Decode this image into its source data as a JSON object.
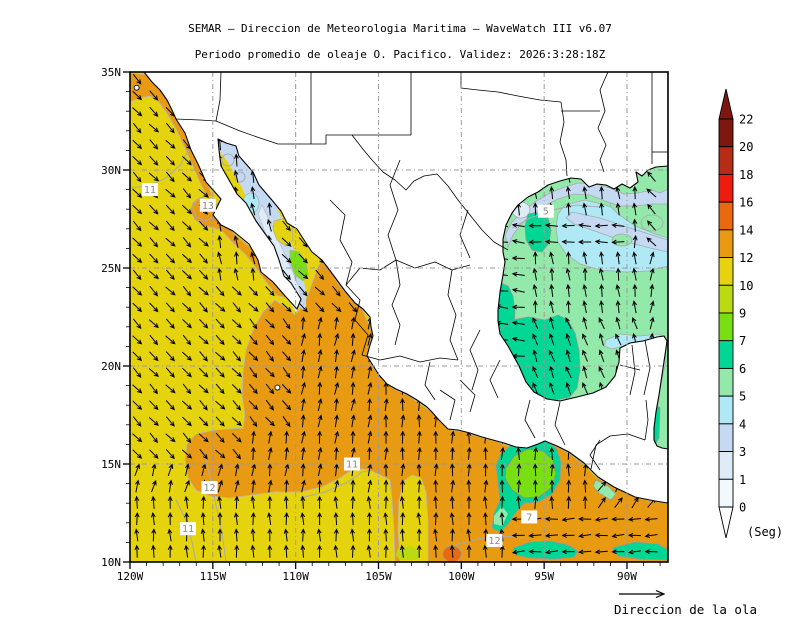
{
  "title": "SEMAR — Direccion de Meteorologia Maritima — WaveWatch III v6.07",
  "subtitle": "Periodo promedio de oleaje O. Pacifico. Validez: 2026:3:28:18Z",
  "legend": {
    "label": "Direccion de la ola"
  },
  "colorbar": {
    "unit": "(Seg)",
    "boundaries": [
      "22",
      "20",
      "18",
      "16",
      "14",
      "12",
      "10",
      "9",
      "7",
      "6",
      "5",
      "4",
      "3",
      "1",
      "0"
    ],
    "colors": [
      "#7C1810",
      "#B42D14",
      "#ED1C0F",
      "#E8690E",
      "#E89A12",
      "#E5D30D",
      "#BBDA10",
      "#7ADF12",
      "#00D795",
      "#92E9A9",
      "#AEE9F5",
      "#C5D9F3",
      "#DEECF8",
      "#F2F9FD"
    ]
  },
  "palette": {
    "c0_1": "#F2F9FD",
    "c1_3": "#DEECF8",
    "c3_4": "#C5D9F3",
    "c4_5": "#AEE9F5",
    "c5_6": "#92E9A9",
    "c6_7": "#00D795",
    "c7_9": "#7ADF12",
    "c9_10": "#BBDA10",
    "c10_12": "#E5D30D",
    "c12_14": "#E89A12",
    "c14_16": "#E8690E",
    "c16_18": "#ED1C0F",
    "c18_20": "#B42D14",
    "c20_22": "#7C1810",
    "grid": "#9B9B9B",
    "contour": "#ABABAB",
    "arrow": "#000000"
  },
  "axes": {
    "lat": [
      {
        "deg": 35,
        "label": "35N"
      },
      {
        "deg": 30,
        "label": "30N"
      },
      {
        "deg": 25,
        "label": "25N"
      },
      {
        "deg": 20,
        "label": "20N"
      },
      {
        "deg": 15,
        "label": "15N"
      },
      {
        "deg": 10,
        "label": "10N"
      }
    ],
    "lon": [
      {
        "deg": -120,
        "label": "120W"
      },
      {
        "deg": -115,
        "label": "115W"
      },
      {
        "deg": -110,
        "label": "110W"
      },
      {
        "deg": -105,
        "label": "105W"
      },
      {
        "deg": -100,
        "label": "100W"
      },
      {
        "deg": -95,
        "label": "95W"
      },
      {
        "deg": -90,
        "label": "90W"
      }
    ]
  },
  "contour_labels": [
    {
      "text": "11",
      "lon": -118.8,
      "lat": 29.0
    },
    {
      "text": "13",
      "lon": -115.3,
      "lat": 28.2
    },
    {
      "text": "11",
      "lon": -116.5,
      "lat": 11.7
    },
    {
      "text": "12",
      "lon": -115.2,
      "lat": 13.8
    },
    {
      "text": "11",
      "lon": -106.6,
      "lat": 15.0
    },
    {
      "text": "12",
      "lon": -98.0,
      "lat": 11.1
    },
    {
      "text": "7",
      "lon": -95.9,
      "lat": 12.3
    },
    {
      "text": "5",
      "lon": -94.9,
      "lat": 27.9
    }
  ],
  "islands": [
    {
      "name": "santa-cruz-islet",
      "lon": -119.6,
      "lat": 34.2
    },
    {
      "name": "socorro-islet",
      "lon": -111.1,
      "lat": 18.9
    }
  ],
  "flow": {
    "default_angle": 0,
    "regions": [
      {
        "name": "gulf-of-california",
        "lon": [
          -114.6,
          -110.6
        ],
        "lat": [
          24.2,
          31.8
        ],
        "angle": 350
      },
      {
        "name": "tehuantepec-westward",
        "lon": [
          -96.6,
          -87.3
        ],
        "lat": [
          10.3,
          12.5
        ],
        "angle": 266
      },
      {
        "name": "tehuantepec-ne",
        "lon": [
          -92.0,
          -87.3
        ],
        "lat": [
          12.5,
          14.2
        ],
        "angle": 35
      },
      {
        "name": "southern-swell",
        "lon": [
          -120.2,
          -96.6
        ],
        "lat": [
          9.8,
          13.2
        ],
        "angle": 357
      },
      {
        "name": "southwest-corner",
        "lon": [
          -120.2,
          -113.0
        ],
        "lat": [
          13.2,
          15.2
        ],
        "angle": 15
      },
      {
        "name": "central-lobe",
        "lon": [
          -113.0,
          -104.6
        ],
        "lat": [
          13.2,
          16.5
        ],
        "angle": 8
      },
      {
        "name": "transition-band",
        "lon": [
          -113.0,
          -110.4
        ],
        "lat": [
          16.5,
          22.8
        ],
        "angle": 140
      },
      {
        "name": "central-north",
        "lon": [
          -110.4,
          -105.4
        ],
        "lat": [
          16.5,
          22.8
        ],
        "angle": 10
      },
      {
        "name": "coastal-south",
        "lon": [
          -105.4,
          -96.6
        ],
        "lat": [
          13.2,
          19.8
        ],
        "angle": 2
      },
      {
        "name": "northwest-swell",
        "lon": [
          -120.2,
          -104.6
        ],
        "lat": [
          14.2,
          35.2
        ],
        "angle": 136
      },
      {
        "name": "gulf-west",
        "lon": [
          -98.6,
          -95.8
        ],
        "lat": [
          19.8,
          27.2
        ],
        "angle": 278
      },
      {
        "name": "gulf-west-band",
        "lon": [
          -95.8,
          -89.8
        ],
        "lat": [
          26.2,
          27.6
        ],
        "angle": 272
      },
      {
        "name": "gulf-north",
        "lon": [
          -95.8,
          -89.2
        ],
        "lat": [
          27.6,
          31.0
        ],
        "angle": 352
      },
      {
        "name": "gulf-northeast",
        "lon": [
          -89.2,
          -86.3
        ],
        "lat": [
          25.8,
          31.0
        ],
        "angle": 318
      },
      {
        "name": "gulf-central",
        "lon": [
          -95.8,
          -89.2
        ],
        "lat": [
          22.8,
          26.2
        ],
        "angle": 352
      },
      {
        "name": "campeche-bay",
        "lon": [
          -95.8,
          -89.2
        ],
        "lat": [
          17.5,
          22.8
        ],
        "angle": 340
      },
      {
        "name": "caribbean",
        "lon": [
          -89.2,
          -86.3
        ],
        "lat": [
          13.9,
          25.8
        ],
        "angle": 12
      }
    ]
  }
}
